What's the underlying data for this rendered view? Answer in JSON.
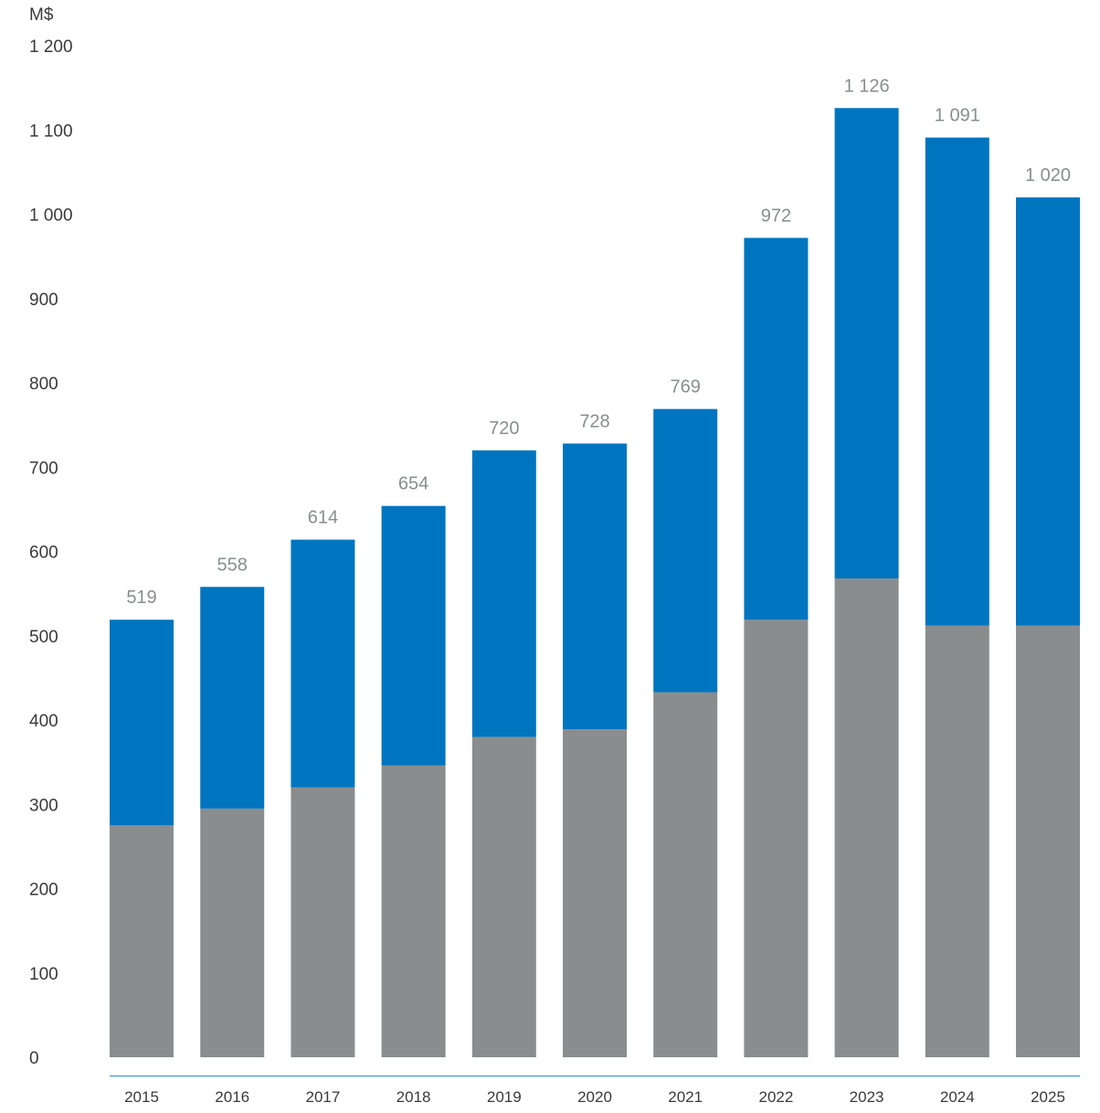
{
  "chart_data": {
    "type": "bar",
    "stacked": true,
    "unit_label": "M$",
    "categories": [
      "2015",
      "2016",
      "2017",
      "2018",
      "2019",
      "2020",
      "2021",
      "2022",
      "2023",
      "2024",
      "2025"
    ],
    "series": [
      {
        "values": [
          275,
          295,
          320,
          346,
          380,
          389,
          433,
          519,
          568,
          512,
          512
        ],
        "color": "#8a8d8e"
      },
      {
        "values": [
          244,
          263,
          294,
          308,
          340,
          339,
          336,
          453,
          558,
          579,
          508
        ],
        "color": "#0075bf"
      }
    ],
    "totals": [
      519,
      558,
      614,
      654,
      720,
      728,
      769,
      972,
      1126,
      1091,
      1020
    ],
    "total_labels": [
      "519",
      "558",
      "614",
      "654",
      "720",
      "728",
      "769",
      "972",
      "1 126",
      "1 091",
      "1 020"
    ],
    "y_ticks": [
      0,
      100,
      200,
      300,
      400,
      500,
      600,
      700,
      800,
      900,
      1000,
      1100,
      1200
    ],
    "y_tick_labels": [
      "0",
      "100",
      "200",
      "300",
      "400",
      "500",
      "600",
      "700",
      "800",
      "900",
      "1 000",
      "1 100",
      "1 200"
    ],
    "ylim": [
      0,
      1200
    ],
    "grid": false,
    "axis_color": "#4da3dc",
    "total_label_color": "#8a8d8e"
  }
}
